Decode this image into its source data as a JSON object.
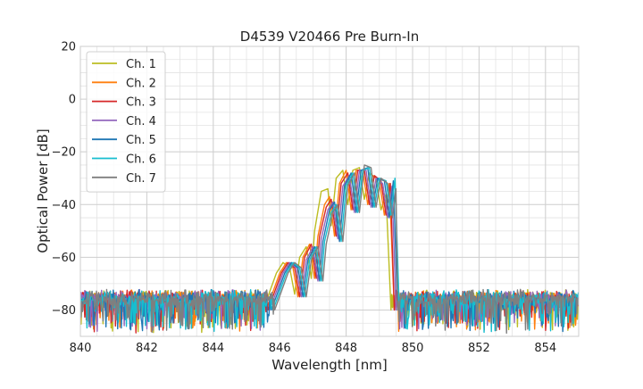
{
  "chart_data": {
    "type": "line",
    "title": "D4539 V20466 Pre Burn-In",
    "xlabel": "Wavelength [nm]",
    "ylabel": "Optical Power [dB]",
    "xlim": [
      840,
      855
    ],
    "ylim": [
      -90,
      20
    ],
    "xticks": [
      840,
      842,
      844,
      846,
      848,
      850,
      852,
      854
    ],
    "yticks": [
      -80,
      -60,
      -40,
      -20,
      0,
      20
    ],
    "grid": true,
    "minor_grid": true,
    "legend_position": "top-left",
    "noise_floor": -78,
    "series": [
      {
        "name": "Ch. 1",
        "color": "#bcbd22",
        "shift": -0.18,
        "edge_left": 845.5,
        "edge_right": 849.35,
        "points": [
          [
            845.5,
            -80
          ],
          [
            845.9,
            -66
          ],
          [
            846.1,
            -62
          ],
          [
            846.3,
            -64
          ],
          [
            846.45,
            -74
          ],
          [
            846.6,
            -60
          ],
          [
            846.8,
            -56
          ],
          [
            846.95,
            -68
          ],
          [
            847.05,
            -50
          ],
          [
            847.25,
            -35
          ],
          [
            847.45,
            -34
          ],
          [
            847.55,
            -48
          ],
          [
            847.7,
            -30
          ],
          [
            847.9,
            -27
          ],
          [
            848.05,
            -40
          ],
          [
            848.2,
            -27
          ],
          [
            848.4,
            -26
          ],
          [
            848.55,
            -38
          ],
          [
            848.7,
            -28
          ],
          [
            848.9,
            -30
          ],
          [
            849.05,
            -42
          ],
          [
            849.2,
            -36
          ],
          [
            849.35,
            -80
          ]
        ]
      },
      {
        "name": "Ch. 2",
        "color": "#ff7f0e",
        "shift": -0.08,
        "edge_left": 845.6,
        "edge_right": 849.45,
        "points": [
          [
            845.6,
            -80
          ],
          [
            846.0,
            -66
          ],
          [
            846.2,
            -62
          ],
          [
            846.4,
            -64
          ],
          [
            846.55,
            -75
          ],
          [
            846.7,
            -60
          ],
          [
            846.9,
            -55
          ],
          [
            847.05,
            -68
          ],
          [
            847.15,
            -52
          ],
          [
            847.35,
            -40
          ],
          [
            847.5,
            -37
          ],
          [
            847.65,
            -52
          ],
          [
            847.8,
            -32
          ],
          [
            848.0,
            -27
          ],
          [
            848.15,
            -42
          ],
          [
            848.3,
            -27
          ],
          [
            848.5,
            -27
          ],
          [
            848.65,
            -40
          ],
          [
            848.8,
            -29
          ],
          [
            849.0,
            -31
          ],
          [
            849.15,
            -44
          ],
          [
            849.3,
            -32
          ],
          [
            849.45,
            -80
          ]
        ]
      },
      {
        "name": "Ch. 3",
        "color": "#d62728",
        "shift": -0.02,
        "edge_left": 845.65,
        "edge_right": 849.45,
        "points": [
          [
            845.65,
            -80
          ],
          [
            846.05,
            -66
          ],
          [
            846.25,
            -62
          ],
          [
            846.45,
            -64
          ],
          [
            846.6,
            -75
          ],
          [
            846.75,
            -60
          ],
          [
            846.95,
            -55
          ],
          [
            847.1,
            -68
          ],
          [
            847.2,
            -52
          ],
          [
            847.4,
            -41
          ],
          [
            847.55,
            -38
          ],
          [
            847.7,
            -52
          ],
          [
            847.85,
            -32
          ],
          [
            848.05,
            -28
          ],
          [
            848.2,
            -42
          ],
          [
            848.35,
            -27
          ],
          [
            848.55,
            -27
          ],
          [
            848.7,
            -40
          ],
          [
            848.85,
            -29
          ],
          [
            849.05,
            -31
          ],
          [
            849.2,
            -44
          ],
          [
            849.33,
            -32
          ],
          [
            849.45,
            -80
          ]
        ]
      },
      {
        "name": "Ch. 4",
        "color": "#9467bd",
        "shift": 0.0,
        "edge_left": 845.7,
        "edge_right": 849.5,
        "points": [
          [
            845.7,
            -80
          ],
          [
            846.1,
            -66
          ],
          [
            846.3,
            -62
          ],
          [
            846.5,
            -64
          ],
          [
            846.65,
            -75
          ],
          [
            846.8,
            -61
          ],
          [
            847.0,
            -56
          ],
          [
            847.15,
            -69
          ],
          [
            847.25,
            -53
          ],
          [
            847.45,
            -42
          ],
          [
            847.6,
            -39
          ],
          [
            847.75,
            -53
          ],
          [
            847.9,
            -33
          ],
          [
            848.1,
            -29
          ],
          [
            848.25,
            -43
          ],
          [
            848.4,
            -27
          ],
          [
            848.6,
            -27
          ],
          [
            848.75,
            -41
          ],
          [
            848.9,
            -30
          ],
          [
            849.1,
            -32
          ],
          [
            849.25,
            -45
          ],
          [
            849.38,
            -33
          ],
          [
            849.5,
            -80
          ]
        ]
      },
      {
        "name": "Ch. 5",
        "color": "#1f77b4",
        "shift": 0.05,
        "edge_left": 845.75,
        "edge_right": 849.55,
        "points": [
          [
            845.75,
            -80
          ],
          [
            846.15,
            -66
          ],
          [
            846.35,
            -62
          ],
          [
            846.55,
            -64
          ],
          [
            846.7,
            -75
          ],
          [
            846.85,
            -61
          ],
          [
            847.05,
            -56
          ],
          [
            847.2,
            -69
          ],
          [
            847.3,
            -54
          ],
          [
            847.5,
            -42
          ],
          [
            847.65,
            -39
          ],
          [
            847.8,
            -54
          ],
          [
            847.95,
            -33
          ],
          [
            848.15,
            -28
          ],
          [
            848.3,
            -43
          ],
          [
            848.45,
            -27
          ],
          [
            848.65,
            -26
          ],
          [
            848.8,
            -41
          ],
          [
            848.95,
            -30
          ],
          [
            849.15,
            -31
          ],
          [
            849.3,
            -45
          ],
          [
            849.42,
            -31
          ],
          [
            849.55,
            -80
          ]
        ]
      },
      {
        "name": "Ch. 6",
        "color": "#17becf",
        "shift": 0.1,
        "edge_left": 845.8,
        "edge_right": 849.6,
        "points": [
          [
            845.8,
            -80
          ],
          [
            846.2,
            -66
          ],
          [
            846.4,
            -62
          ],
          [
            846.6,
            -64
          ],
          [
            846.75,
            -75
          ],
          [
            846.9,
            -61
          ],
          [
            847.1,
            -56
          ],
          [
            847.25,
            -69
          ],
          [
            847.35,
            -54
          ],
          [
            847.55,
            -43
          ],
          [
            847.7,
            -40
          ],
          [
            847.85,
            -54
          ],
          [
            848.0,
            -33
          ],
          [
            848.2,
            -28
          ],
          [
            848.35,
            -43
          ],
          [
            848.5,
            -27
          ],
          [
            848.7,
            -26
          ],
          [
            848.85,
            -41
          ],
          [
            849.0,
            -30
          ],
          [
            849.2,
            -31
          ],
          [
            849.35,
            -44
          ],
          [
            849.47,
            -30
          ],
          [
            849.6,
            -80
          ]
        ]
      },
      {
        "name": "Ch. 7",
        "color": "#7f7f7f",
        "shift": 0.15,
        "edge_left": 845.85,
        "edge_right": 849.55,
        "points": [
          [
            845.85,
            -80
          ],
          [
            846.25,
            -66
          ],
          [
            846.45,
            -62
          ],
          [
            846.65,
            -64
          ],
          [
            846.8,
            -75
          ],
          [
            846.95,
            -61
          ],
          [
            847.15,
            -56
          ],
          [
            847.3,
            -69
          ],
          [
            847.4,
            -55
          ],
          [
            847.6,
            -43
          ],
          [
            847.75,
            -40
          ],
          [
            847.9,
            -54
          ],
          [
            848.05,
            -33
          ],
          [
            848.25,
            -28
          ],
          [
            848.4,
            -43
          ],
          [
            848.55,
            -25
          ],
          [
            848.75,
            -26
          ],
          [
            848.9,
            -41
          ],
          [
            849.05,
            -30
          ],
          [
            849.25,
            -32
          ],
          [
            849.4,
            -45
          ],
          [
            849.5,
            -34
          ],
          [
            849.55,
            -80
          ]
        ]
      }
    ]
  }
}
